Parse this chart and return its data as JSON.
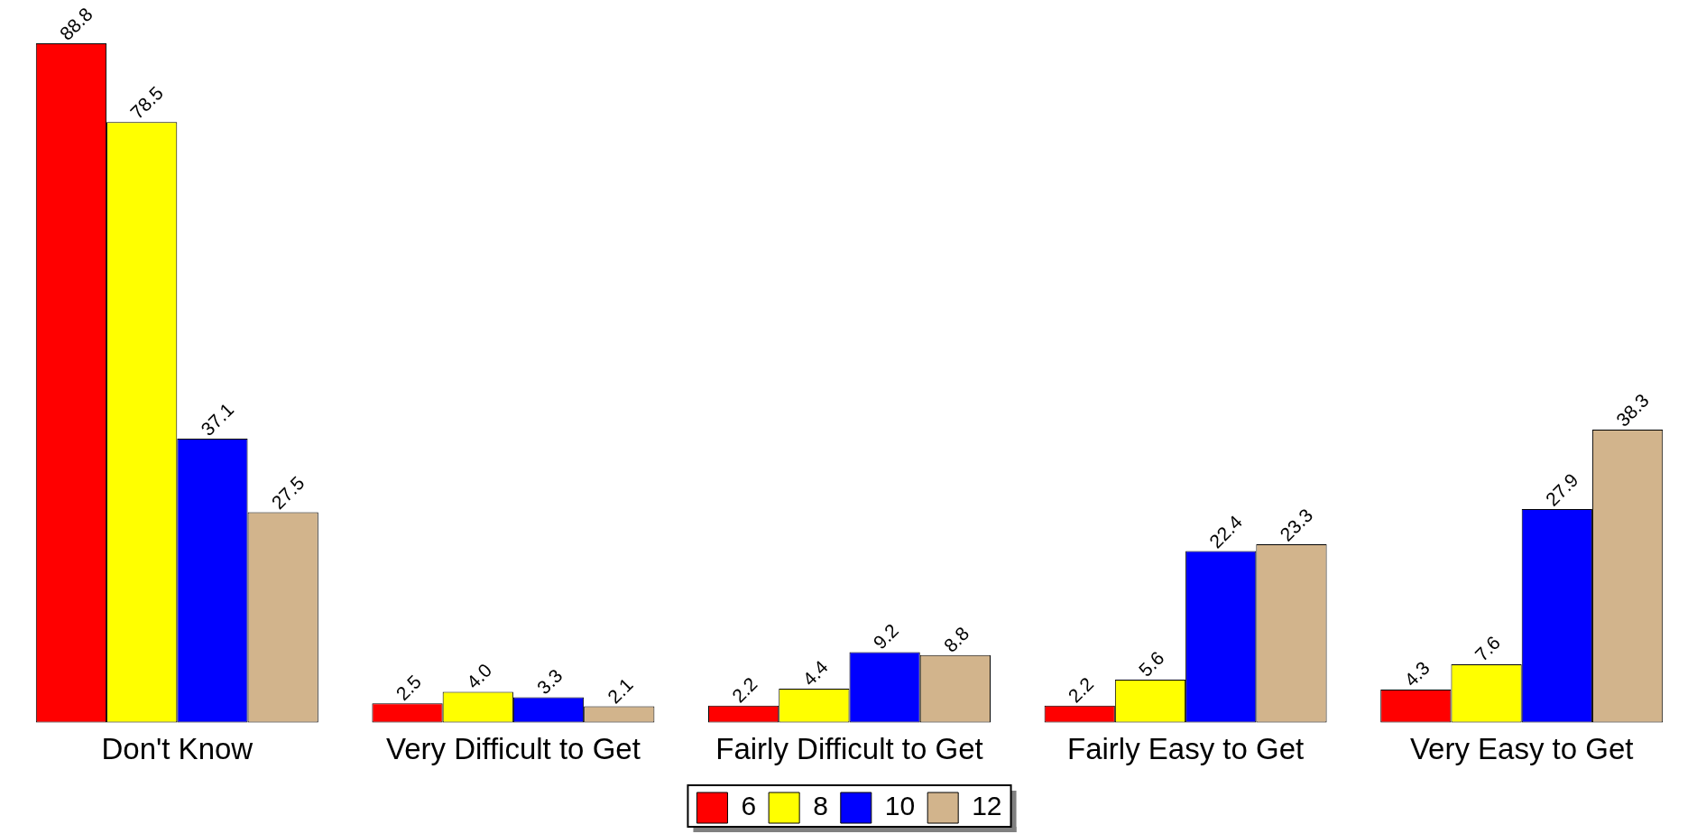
{
  "chart_data": {
    "type": "bar",
    "categories": [
      "Don't Know",
      "Very Difficult to Get",
      "Fairly Difficult to Get",
      "Fairly Easy to Get",
      "Very Easy to Get"
    ],
    "series": [
      {
        "name": "6",
        "color": "#ff0000",
        "values": [
          88.8,
          2.5,
          2.2,
          2.2,
          4.3
        ],
        "value_labels": [
          "88.8",
          "2.5",
          "2.2",
          "2.2",
          "4.3"
        ]
      },
      {
        "name": "8",
        "color": "#ffff00",
        "values": [
          78.5,
          4.0,
          4.4,
          5.6,
          7.6
        ],
        "value_labels": [
          "78.5",
          "4.0",
          "4.4",
          "5.6",
          "7.6"
        ]
      },
      {
        "name": "10",
        "color": "#0000ff",
        "values": [
          37.1,
          3.3,
          9.2,
          22.4,
          27.9
        ],
        "value_labels": [
          "37.1",
          "3.3",
          "9.2",
          "22.4",
          "27.9"
        ]
      },
      {
        "name": "12",
        "color": "#d2b48c",
        "values": [
          27.5,
          2.1,
          8.8,
          23.3,
          38.3
        ],
        "value_labels": [
          "27.5",
          "2.1",
          "8.8",
          "23.3",
          "38.3"
        ]
      }
    ],
    "legend": "bottom"
  }
}
